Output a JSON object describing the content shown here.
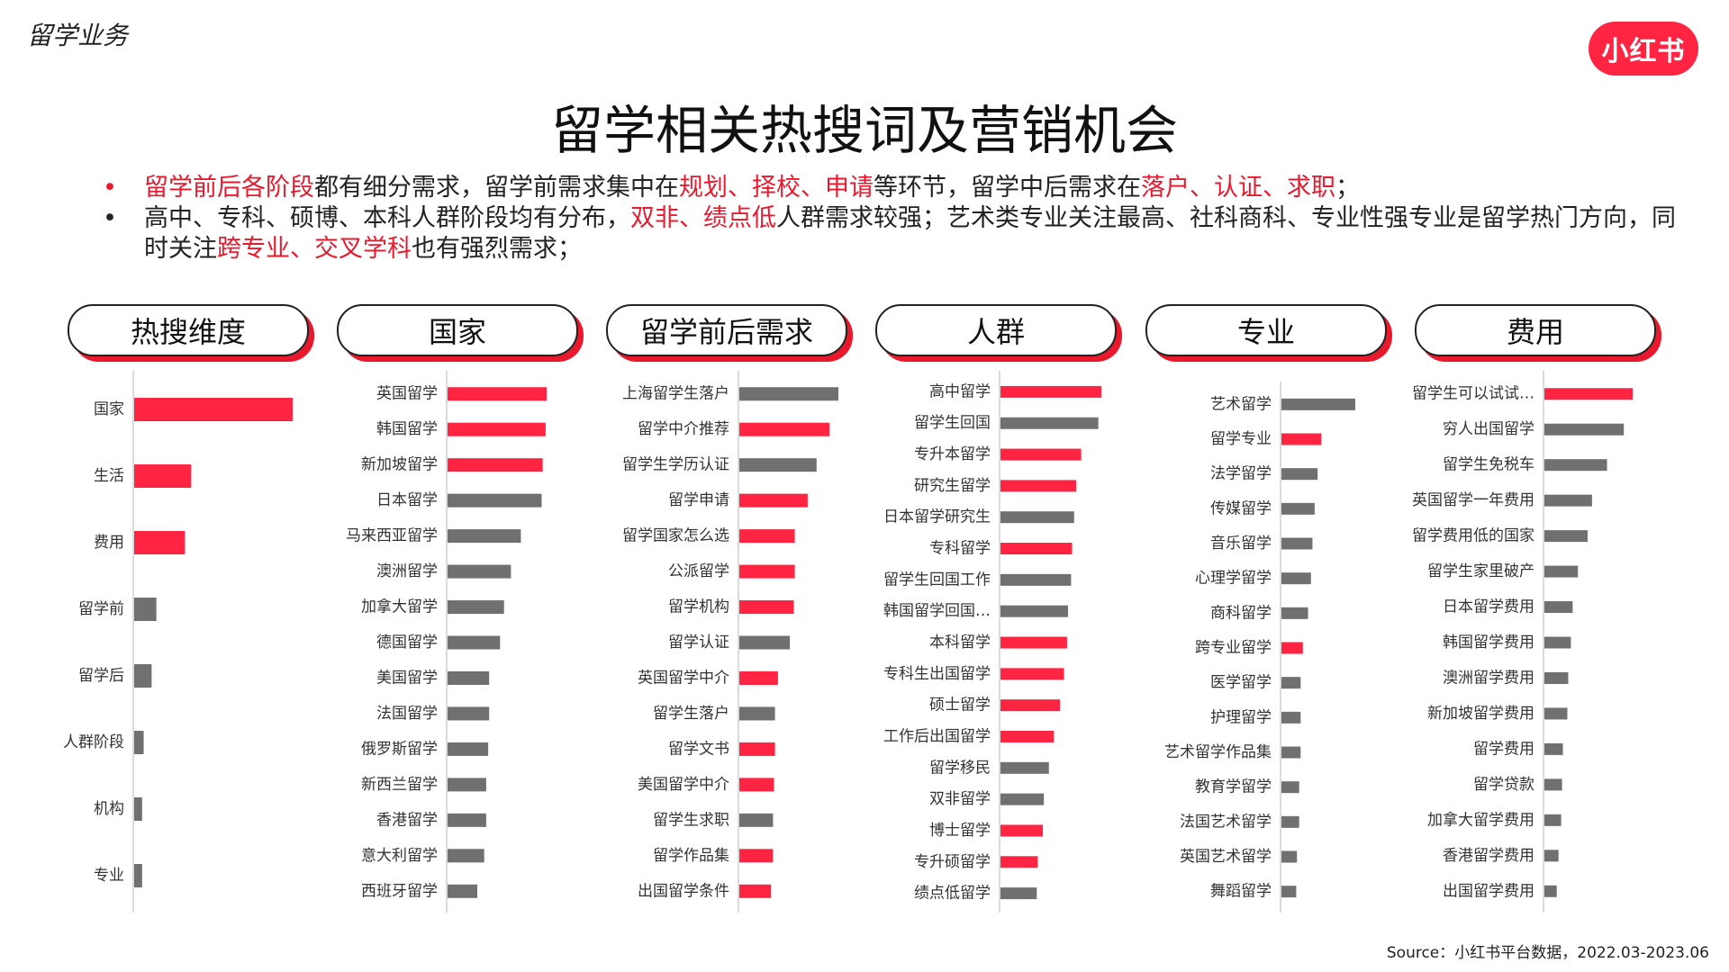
{
  "header": {
    "section_label": "留学业务",
    "logo_text": "小红书",
    "title": "留学相关热搜词及营销机会"
  },
  "bullets": [
    {
      "dot": "•",
      "segments": [
        {
          "text": "留学前后各阶段",
          "hl": true
        },
        {
          "text": "都有细分需求，留学前需求集中在",
          "hl": false
        },
        {
          "text": "规划、择校、申请",
          "hl": true
        },
        {
          "text": "等环节，留学中后需求在",
          "hl": false
        },
        {
          "text": "落户、认证、求职",
          "hl": true
        },
        {
          "text": "；",
          "hl": false
        }
      ]
    },
    {
      "dot": "•",
      "segments": [
        {
          "text": "高中、专科、硕博、本科人群阶段均有分布，",
          "hl": false
        },
        {
          "text": "双非、绩点低",
          "hl": true
        },
        {
          "text": "人群需求较强；艺术类专业关注最高、社科商科、专业性强专业是留学热门方向，同时关注",
          "hl": false
        },
        {
          "text": "跨专业、交叉学科",
          "hl": true
        },
        {
          "text": "也有强烈需求；",
          "hl": false
        }
      ]
    }
  ],
  "colors": {
    "red": "#ff2442",
    "gray": "#707070",
    "accent": "#e8192c"
  },
  "source": "Source：小红书平台数据，2022.03-2023.06",
  "chart_data": [
    {
      "type": "bar",
      "orientation": "horizontal",
      "title": "热搜维度",
      "categories": [
        "国家",
        "生活",
        "费用",
        "留学前",
        "留学后",
        "人群阶段",
        "机构",
        "专业"
      ],
      "values": [
        100,
        36,
        32,
        14,
        11,
        6,
        5,
        5
      ],
      "colors": [
        "red",
        "red",
        "red",
        "gray",
        "gray",
        "gray",
        "gray",
        "gray"
      ]
    },
    {
      "type": "bar",
      "orientation": "horizontal",
      "title": "国家",
      "categories": [
        "英国留学",
        "韩国留学",
        "新加坡留学",
        "日本留学",
        "马来西亚留学",
        "澳洲留学",
        "加拿大留学",
        "德国留学",
        "美国留学",
        "法国留学",
        "俄罗斯留学",
        "新西兰留学",
        "香港留学",
        "意大利留学",
        "西班牙留学"
      ],
      "values": [
        100,
        99,
        96,
        95,
        74,
        64,
        57,
        53,
        42,
        42,
        41,
        39,
        39,
        37,
        30
      ],
      "colors": [
        "red",
        "red",
        "red",
        "gray",
        "gray",
        "gray",
        "gray",
        "gray",
        "gray",
        "gray",
        "gray",
        "gray",
        "gray",
        "gray",
        "gray"
      ]
    },
    {
      "type": "bar",
      "orientation": "horizontal",
      "title": "留学前后需求",
      "categories": [
        "上海留学生落户",
        "留学中介推荐",
        "留学生学历认证",
        "留学申请",
        "留学国家怎么选",
        "公派留学",
        "留学机构",
        "留学认证",
        "英国留学中介",
        "留学生落户",
        "留学文书",
        "美国留学中介",
        "留学生求职",
        "留学作品集",
        "出国留学条件"
      ],
      "values": [
        100,
        91,
        78,
        69,
        56,
        56,
        55,
        51,
        39,
        36,
        36,
        35,
        34,
        34,
        32
      ],
      "colors": [
        "gray",
        "red",
        "gray",
        "red",
        "red",
        "red",
        "red",
        "gray",
        "red",
        "gray",
        "red",
        "red",
        "gray",
        "red",
        "red"
      ]
    },
    {
      "type": "bar",
      "orientation": "horizontal",
      "title": "人群",
      "categories": [
        "高中留学",
        "留学生回国",
        "专升本留学",
        "研究生留学",
        "日本留学研究生",
        "专科留学",
        "留学生回国工作",
        "韩国留学回国…",
        "本科留学",
        "专科生出国留学",
        "硕士留学",
        "工作后出国留学",
        "留学移民",
        "双非留学",
        "博士留学",
        "专升硕留学",
        "绩点低留学"
      ],
      "values": [
        100,
        97,
        80,
        75,
        73,
        71,
        70,
        67,
        66,
        63,
        59,
        53,
        48,
        43,
        42,
        37,
        36
      ],
      "colors": [
        "red",
        "gray",
        "red",
        "red",
        "gray",
        "red",
        "gray",
        "gray",
        "red",
        "red",
        "red",
        "red",
        "gray",
        "gray",
        "red",
        "red",
        "gray"
      ]
    },
    {
      "type": "bar",
      "orientation": "horizontal",
      "title": "专业",
      "categories": [
        "艺术留学",
        "留学专业",
        "法学留学",
        "传媒留学",
        "音乐留学",
        "心理学留学",
        "商科留学",
        "跨专业留学",
        "医学留学",
        "护理留学",
        "艺术留学作品集",
        "教育学留学",
        "法国艺术留学",
        "英国艺术留学",
        "舞蹈留学"
      ],
      "values": [
        100,
        54,
        49,
        45,
        42,
        40,
        36,
        29,
        26,
        26,
        26,
        24,
        24,
        21,
        20
      ],
      "colors": [
        "gray",
        "red",
        "gray",
        "gray",
        "gray",
        "gray",
        "gray",
        "red",
        "gray",
        "gray",
        "gray",
        "gray",
        "gray",
        "gray",
        "gray"
      ]
    },
    {
      "type": "bar",
      "orientation": "horizontal",
      "title": "费用",
      "categories": [
        "留学生可以试试…",
        "穷人出国留学",
        "留学生免税车",
        "英国留学一年费用",
        "留学费用低的国家",
        "留学生家里破产",
        "日本留学费用",
        "韩国留学费用",
        "澳洲留学费用",
        "新加坡留学费用",
        "留学费用",
        "留学贷款",
        "加拿大留学费用",
        "香港留学费用",
        "出国留学费用"
      ],
      "values": [
        100,
        90,
        71,
        54,
        49,
        38,
        32,
        30,
        27,
        26,
        21,
        20,
        19,
        16,
        14
      ],
      "colors": [
        "red",
        "gray",
        "gray",
        "gray",
        "gray",
        "gray",
        "gray",
        "gray",
        "gray",
        "gray",
        "gray",
        "gray",
        "gray",
        "gray",
        "gray"
      ]
    }
  ]
}
